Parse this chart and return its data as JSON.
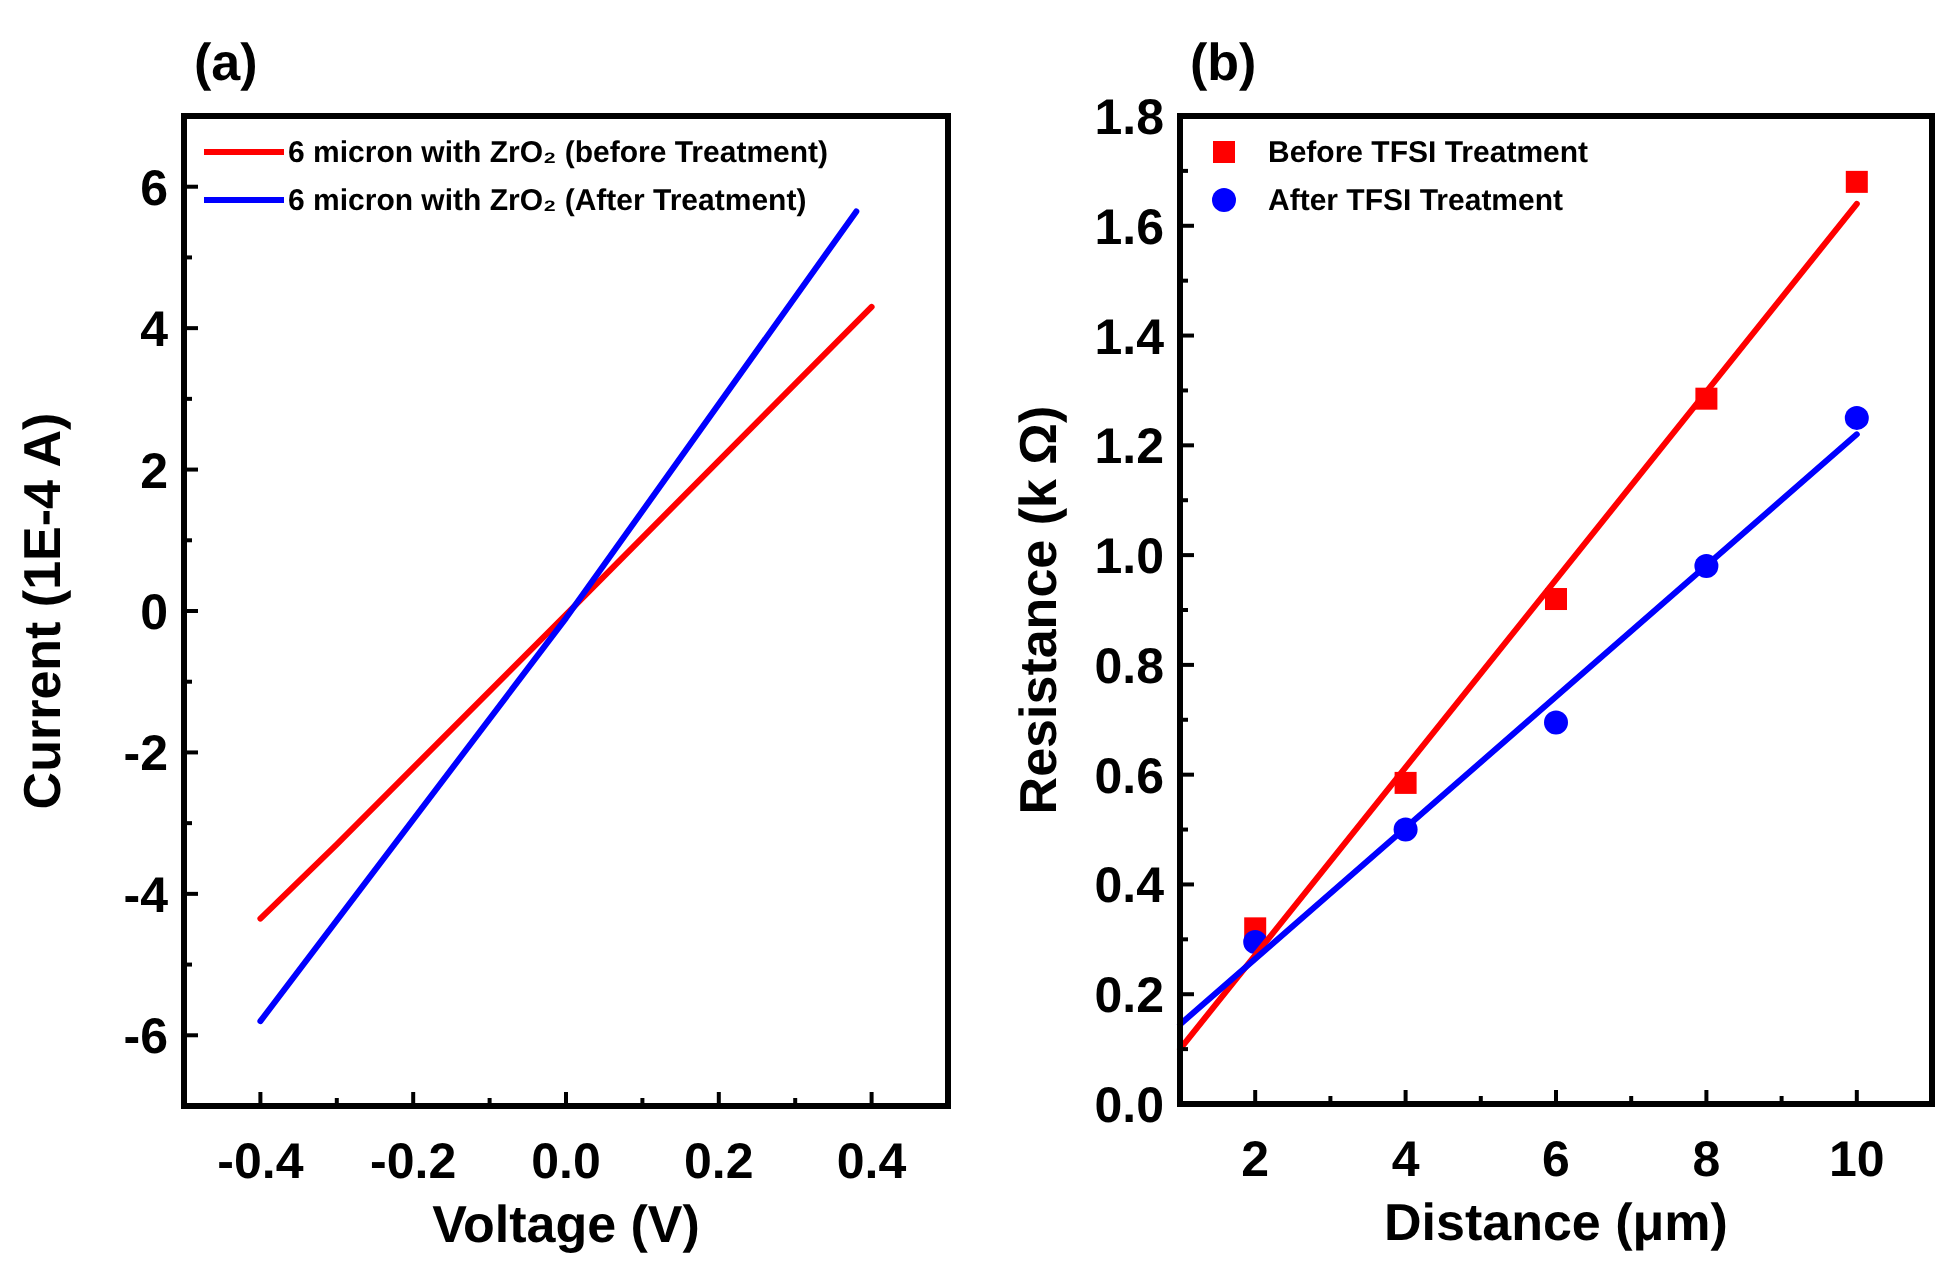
{
  "chart_data": [
    {
      "type": "line",
      "title": "(a)",
      "xlabel": "Voltage (V)",
      "ylabel": "Current (1E-4 A)",
      "xlim": [
        -0.5,
        0.5
      ],
      "ylim": [
        -7,
        7
      ],
      "xticks": [
        -0.4,
        {
          "value": -0.3,
          "label": null
        },
        -0.2,
        {
          "value": -0.1,
          "label": null
        },
        {
          "value": 0,
          "label": "0.0"
        },
        {
          "value": 0.1,
          "label": null
        },
        0.2,
        {
          "value": 0.3,
          "label": null
        },
        0.4
      ],
      "yticks": [
        {
          "value": -6,
          "label": "-6"
        },
        {
          "value": -5,
          "label": null
        },
        {
          "value": -4,
          "label": "-4"
        },
        {
          "value": -3,
          "label": null
        },
        {
          "value": -2,
          "label": "-2"
        },
        {
          "value": -1,
          "label": null
        },
        0,
        {
          "value": 1,
          "label": null
        },
        2,
        {
          "value": 3,
          "label": null
        },
        4,
        {
          "value": 5,
          "label": null
        },
        6
      ],
      "legend": "top left",
      "grid": false,
      "line_style": "solid",
      "series": [
        {
          "name": "6 micron with ZrO₂ (before Treatment)",
          "color": "#ff0000",
          "x": [
            -0.4,
            -0.3,
            0,
            0.4
          ],
          "values": [
            -4.35,
            -3.3,
            -0.05,
            4.3
          ]
        },
        {
          "name": "6 micron with ZrO₂ (After Treatment)",
          "color": "#0000ff",
          "x": [
            -0.4,
            0,
            0.38
          ],
          "values": [
            -5.8,
            -0.1,
            5.65
          ]
        }
      ]
    },
    {
      "type": "scatter",
      "title": "(b)",
      "xlabel": "Distance (μm)",
      "ylabel": "Resistance (k Ω)",
      "xlim": [
        1,
        11
      ],
      "ylim": [
        0,
        1.8
      ],
      "xticks": [
        2,
        {
          "value": 3,
          "label": null
        },
        4,
        {
          "value": 5,
          "label": null
        },
        6,
        {
          "value": 7,
          "label": null
        },
        8,
        {
          "value": 9,
          "label": null
        },
        10
      ],
      "yticks": [
        {
          "value": 0,
          "label": "0.0"
        },
        {
          "value": 0.1,
          "label": null
        },
        0.2,
        {
          "value": 0.3,
          "label": null
        },
        0.4,
        {
          "value": 0.5,
          "label": null
        },
        0.6,
        {
          "value": 0.7,
          "label": null
        },
        0.8,
        {
          "value": 0.9,
          "label": null
        },
        {
          "value": 1,
          "label": "1.0"
        },
        {
          "value": 1.1,
          "label": null
        },
        1.2,
        {
          "value": 1.3,
          "label": null
        },
        1.4,
        {
          "value": 1.5,
          "label": null
        },
        1.6,
        {
          "value": 1.7,
          "label": null
        },
        1.8
      ],
      "legend": "top left",
      "grid": false,
      "series": [
        {
          "name": "Before TFSI Treatment",
          "marker": "square",
          "color": "#ff0000",
          "x": [
            2,
            4,
            6,
            8,
            10
          ],
          "values": [
            0.32,
            0.585,
            0.92,
            1.285,
            1.68
          ]
        },
        {
          "name": "After TFSI Treatment",
          "marker": "circle",
          "color": "#0000ff",
          "x": [
            2,
            4,
            6,
            8,
            10
          ],
          "values": [
            0.295,
            0.5,
            0.695,
            0.98,
            1.25
          ]
        },
        {
          "type": "line",
          "color": "#ff0000",
          "x": [
            1,
            10
          ],
          "values": [
            0.1,
            1.64
          ]
        },
        {
          "type": "line",
          "color": "#0000ff",
          "x": [
            1,
            10
          ],
          "values": [
            0.145,
            1.22
          ]
        }
      ]
    }
  ]
}
